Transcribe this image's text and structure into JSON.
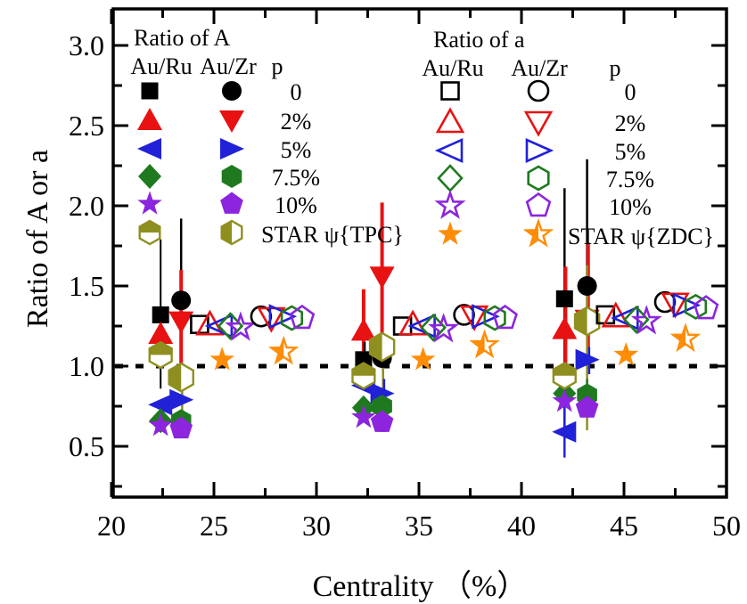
{
  "chart_data": {
    "type": "scatter",
    "title": "",
    "xlabel": "Centrality （%）",
    "ylabel": "Ratio of A or a",
    "xlim": [
      20,
      50
    ],
    "ylim": [
      0.2,
      3.2
    ],
    "xticks": [
      20,
      25,
      30,
      35,
      40,
      45,
      50
    ],
    "xticks_minor": [
      22.5,
      27.5,
      32.5,
      37.5,
      42.5,
      47.5
    ],
    "yticks": [
      0.5,
      1.0,
      1.5,
      2.0,
      2.5,
      3.0
    ],
    "yticks_minor": [
      0.25,
      0.75,
      1.25,
      1.75,
      2.25,
      2.75
    ],
    "grid": false,
    "reference_line_y": 1.0,
    "colors": {
      "black": "#000000",
      "red": "#e81212",
      "blue": "#2121d8",
      "green": "#1f7a1f",
      "purple": "#8c25dd",
      "olive": "#8f8f20",
      "orange": "#ff8c05"
    },
    "legend_a": {
      "title": "Ratio of A",
      "columns": [
        "Au/Ru",
        "Au/Zr",
        "p"
      ],
      "rows": [
        {
          "m1": "square",
          "m2": "circle",
          "color": "#000000",
          "fill1": "full",
          "fill2": "full",
          "label": "0"
        },
        {
          "m1": "triangle-up",
          "m2": "triangle-down",
          "color": "#e81212",
          "fill1": "full",
          "fill2": "full",
          "label": "2%"
        },
        {
          "m1": "triangle-left",
          "m2": "triangle-right",
          "color": "#2121d8",
          "fill1": "full",
          "fill2": "full",
          "label": "5%"
        },
        {
          "m1": "diamond",
          "m2": "hexagon",
          "color": "#1f7a1f",
          "fill1": "full",
          "fill2": "full",
          "label": "7.5%"
        },
        {
          "m1": "star",
          "m2": "pentagon",
          "color": "#8c25dd",
          "fill1": "full",
          "fill2": "full",
          "label": "10%"
        },
        {
          "m1": "hexagon",
          "m2": "hexagon",
          "color": "#8f8f20",
          "fill1": "half-top",
          "fill2": "half-left",
          "label": "STAR ψ{TPC}"
        }
      ]
    },
    "legend_b": {
      "title": "Ratio of a",
      "columns": [
        "Au/Ru",
        "Au/Zr",
        "p"
      ],
      "rows": [
        {
          "m1": "square",
          "m2": "circle",
          "color": "#000000",
          "fill1": "open",
          "fill2": "open",
          "label": "0"
        },
        {
          "m1": "triangle-up",
          "m2": "triangle-down",
          "color": "#e81212",
          "fill1": "open",
          "fill2": "open",
          "label": "2%"
        },
        {
          "m1": "triangle-left",
          "m2": "triangle-right",
          "color": "#2121d8",
          "fill1": "open",
          "fill2": "open",
          "label": "5%"
        },
        {
          "m1": "diamond",
          "m2": "hexagon",
          "color": "#1f7a1f",
          "fill1": "open",
          "fill2": "open",
          "label": "7.5%"
        },
        {
          "m1": "star",
          "m2": "pentagon",
          "color": "#8c25dd",
          "fill1": "open",
          "fill2": "open",
          "label": "10%"
        },
        {
          "m1": "star",
          "m2": "star",
          "color": "#ff8c05",
          "fill1": "full",
          "fill2": "half-left",
          "label": "STAR ψ{ZDC}"
        }
      ]
    },
    "series": [
      {
        "name": "A Au/Ru p0",
        "marker": "square",
        "color": "#000000",
        "fill": "full",
        "points": [
          [
            22.4,
            1.32
          ],
          [
            32.3,
            1.04
          ],
          [
            42.1,
            1.42
          ]
        ]
      },
      {
        "name": "A Au/Zr p0",
        "marker": "circle",
        "color": "#000000",
        "fill": "full",
        "points": [
          [
            23.4,
            1.41
          ],
          [
            33.2,
            1.05
          ],
          [
            43.2,
            1.5
          ]
        ]
      },
      {
        "name": "A Au/Ru p2",
        "marker": "triangle-up",
        "color": "#e81212",
        "fill": "full",
        "points": [
          [
            22.4,
            1.2
          ],
          [
            32.3,
            1.22
          ],
          [
            42.1,
            1.23
          ]
        ]
      },
      {
        "name": "A Au/Zr p2",
        "marker": "triangle-down",
        "color": "#e81212",
        "fill": "full",
        "points": [
          [
            23.4,
            1.28
          ],
          [
            33.2,
            1.56
          ],
          [
            43.2,
            1.29
          ]
        ]
      },
      {
        "name": "A Au/Ru p5",
        "marker": "triangle-left",
        "color": "#2121d8",
        "fill": "full",
        "points": [
          [
            22.4,
            0.76
          ],
          [
            32.3,
            0.88
          ],
          [
            42.1,
            0.59
          ]
        ]
      },
      {
        "name": "A Au/Zr p5",
        "marker": "triangle-right",
        "color": "#2121d8",
        "fill": "full",
        "points": [
          [
            23.4,
            0.79
          ],
          [
            33.2,
            0.83
          ],
          [
            43.2,
            1.04
          ]
        ]
      },
      {
        "name": "A Au/Ru p7.5",
        "marker": "diamond",
        "color": "#1f7a1f",
        "fill": "full",
        "points": [
          [
            22.4,
            0.66
          ],
          [
            32.3,
            0.74
          ],
          [
            42.1,
            0.83
          ]
        ]
      },
      {
        "name": "A Au/Zr p7.5",
        "marker": "hexagon",
        "color": "#1f7a1f",
        "fill": "full",
        "points": [
          [
            23.4,
            0.66
          ],
          [
            33.2,
            0.75
          ],
          [
            43.2,
            0.82
          ]
        ]
      },
      {
        "name": "A Au/Ru p10",
        "marker": "star",
        "color": "#8c25dd",
        "fill": "full",
        "points": [
          [
            22.4,
            0.63
          ],
          [
            32.3,
            0.68
          ],
          [
            42.1,
            0.78
          ]
        ]
      },
      {
        "name": "A Au/Zr p10",
        "marker": "pentagon",
        "color": "#8c25dd",
        "fill": "full",
        "points": [
          [
            23.4,
            0.61
          ],
          [
            33.2,
            0.65
          ],
          [
            43.2,
            0.74
          ]
        ]
      },
      {
        "name": "A Au/Ru STAR psi TPC",
        "marker": "hexagon",
        "color": "#8f8f20",
        "fill": "half-top",
        "size": 1.1,
        "points": [
          [
            22.4,
            1.07
          ],
          [
            32.3,
            0.94
          ],
          [
            42.1,
            0.94
          ]
        ]
      },
      {
        "name": "A Au/Zr STAR psi TPC",
        "marker": "hexagon",
        "color": "#8f8f20",
        "fill": "half-left",
        "size": 1.2,
        "points": [
          [
            23.4,
            0.93
          ],
          [
            33.2,
            1.12
          ],
          [
            43.2,
            1.28
          ]
        ]
      },
      {
        "name": "a Au/Ru p0",
        "marker": "square",
        "color": "#000000",
        "fill": "open",
        "points": [
          [
            24.3,
            1.26
          ],
          [
            34.2,
            1.25
          ],
          [
            44.1,
            1.32
          ]
        ]
      },
      {
        "name": "a Au/Ru p2",
        "marker": "triangle-up",
        "color": "#e81212",
        "fill": "open",
        "points": [
          [
            24.8,
            1.26
          ],
          [
            34.7,
            1.26
          ],
          [
            44.6,
            1.31
          ]
        ]
      },
      {
        "name": "a Au/Ru p5",
        "marker": "triangle-left",
        "color": "#2121d8",
        "fill": "open",
        "points": [
          [
            25.3,
            1.25
          ],
          [
            35.2,
            1.25
          ],
          [
            45.1,
            1.3
          ]
        ]
      },
      {
        "name": "a Au/Ru p7.5",
        "marker": "diamond",
        "color": "#1f7a1f",
        "fill": "open",
        "points": [
          [
            25.8,
            1.25
          ],
          [
            35.7,
            1.24
          ],
          [
            45.6,
            1.29
          ]
        ]
      },
      {
        "name": "a Au/Ru p10",
        "marker": "star",
        "color": "#8c25dd",
        "fill": "open",
        "points": [
          [
            26.3,
            1.24
          ],
          [
            36.2,
            1.23
          ],
          [
            46.1,
            1.28
          ]
        ]
      },
      {
        "name": "a Au/Zr p0",
        "marker": "circle",
        "color": "#000000",
        "fill": "open",
        "points": [
          [
            27.3,
            1.31
          ],
          [
            37.2,
            1.32
          ],
          [
            47.0,
            1.4
          ]
        ]
      },
      {
        "name": "a Au/Zr p2",
        "marker": "triangle-down",
        "color": "#e81212",
        "fill": "open",
        "points": [
          [
            27.8,
            1.3
          ],
          [
            37.7,
            1.31
          ],
          [
            47.5,
            1.39
          ]
        ]
      },
      {
        "name": "a Au/Zr p5",
        "marker": "triangle-right",
        "color": "#2121d8",
        "fill": "open",
        "points": [
          [
            28.3,
            1.31
          ],
          [
            38.2,
            1.31
          ],
          [
            48.0,
            1.38
          ]
        ]
      },
      {
        "name": "a Au/Zr p7.5",
        "marker": "hexagon",
        "color": "#1f7a1f",
        "fill": "open",
        "points": [
          [
            28.8,
            1.3
          ],
          [
            38.7,
            1.3
          ],
          [
            48.5,
            1.37
          ]
        ]
      },
      {
        "name": "a Au/Zr p10",
        "marker": "pentagon",
        "color": "#8c25dd",
        "fill": "open",
        "points": [
          [
            29.3,
            1.3
          ],
          [
            39.2,
            1.3
          ],
          [
            49.0,
            1.36
          ]
        ]
      },
      {
        "name": "a Au/Ru STAR psi ZDC",
        "marker": "star",
        "color": "#ff8c05",
        "fill": "full",
        "points": [
          [
            25.4,
            1.04
          ],
          [
            35.2,
            1.04
          ],
          [
            45.1,
            1.07
          ]
        ]
      },
      {
        "name": "a Au/Zr STAR psi ZDC",
        "marker": "star",
        "color": "#ff8c05",
        "fill": "half-left",
        "points": [
          [
            28.4,
            1.09
          ],
          [
            38.2,
            1.13
          ],
          [
            48.0,
            1.17
          ]
        ]
      }
    ],
    "error_bars": [
      {
        "x": 22.4,
        "lo": 0.86,
        "hi": 1.79,
        "color": "#000000",
        "w": 2
      },
      {
        "x": 23.4,
        "lo": 1.28,
        "hi": 1.92,
        "color": "#000000",
        "w": 2.5
      },
      {
        "x": 23.4,
        "lo": 0.95,
        "hi": 1.6,
        "color": "#e81212",
        "w": 4
      },
      {
        "x": 23.45,
        "lo": 0.67,
        "hi": 1.02,
        "color": "#8f8f20",
        "w": 2.5
      },
      {
        "x": 32.3,
        "lo": 1.02,
        "hi": 1.48,
        "color": "#e81212",
        "w": 4
      },
      {
        "x": 32.35,
        "lo": 0.95,
        "hi": 1.15,
        "color": "#000000",
        "w": 2.5
      },
      {
        "x": 33.2,
        "lo": 1.12,
        "hi": 2.02,
        "color": "#e81212",
        "w": 4
      },
      {
        "x": 33.25,
        "lo": 0.59,
        "hi": 1.2,
        "color": "#8f8f20",
        "w": 2.5
      },
      {
        "x": 33.3,
        "lo": 0.59,
        "hi": 0.92,
        "color": "#2121d8",
        "w": 2.5
      },
      {
        "x": 42.1,
        "lo": 0.6,
        "hi": 2.11,
        "color": "#000000",
        "w": 2.5
      },
      {
        "x": 42.15,
        "lo": 1.0,
        "hi": 1.62,
        "color": "#e81212",
        "w": 4
      },
      {
        "x": 42.1,
        "lo": 0.43,
        "hi": 0.75,
        "color": "#2121d8",
        "w": 2.5
      },
      {
        "x": 43.2,
        "lo": 1.28,
        "hi": 2.29,
        "color": "#000000",
        "w": 2.5
      },
      {
        "x": 43.25,
        "lo": 1.0,
        "hi": 1.77,
        "color": "#e81212",
        "w": 4
      },
      {
        "x": 43.2,
        "lo": 0.6,
        "hi": 1.63,
        "color": "#8f8f20",
        "w": 2.5
      },
      {
        "x": 43.3,
        "lo": 0.95,
        "hi": 1.12,
        "color": "#2121d8",
        "w": 2.5
      },
      {
        "x": 43.2,
        "lo": 0.7,
        "hi": 0.92,
        "color": "#1f7a1f",
        "w": 2.5
      }
    ]
  }
}
